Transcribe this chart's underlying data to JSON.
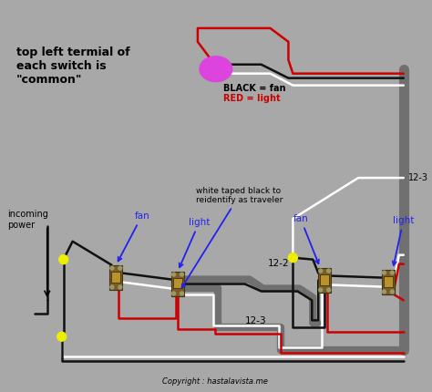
{
  "bg_color": "#a8a8a8",
  "annotation_topleft": "top left termial of\neach switch is\n\"common\"",
  "annotation_black": "BLACK = fan",
  "annotation_red": "RED = light",
  "annotation_traveler": "white taped black to\nreidentify as traveler",
  "annotation_12_2": "12-2",
  "annotation_12_3_right": "12-3",
  "annotation_12_3_bottom": "12-3",
  "annotation_incoming": "incoming\npower",
  "annotation_fan_left": "fan",
  "annotation_light_mid": "light",
  "annotation_fan_right": "fan",
  "annotation_light_right": "light",
  "copyright": "Copyright : hastalavista.me",
  "wire_black": "#111111",
  "wire_white": "#ffffff",
  "wire_red": "#cc0000",
  "wire_gray": "#707070",
  "switch_body": "#7a5c2a",
  "switch_metal": "#b8922a",
  "fixture_color": "#dd44dd",
  "dot_color": "#eeee00"
}
